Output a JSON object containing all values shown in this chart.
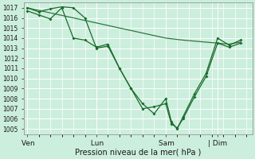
{
  "xlabel": "Pression niveau de la mer( hPa )",
  "bg_color": "#cceedd",
  "grid_color": "#ffffff",
  "line_color": "#1a6b2a",
  "ylim": [
    1004.5,
    1017.5
  ],
  "yticks": [
    1005,
    1006,
    1007,
    1008,
    1009,
    1010,
    1011,
    1012,
    1013,
    1014,
    1015,
    1016,
    1017
  ],
  "day_labels": [
    " Ven",
    " Lun",
    " Sam",
    "| Dim"
  ],
  "day_positions": [
    0.0,
    24.0,
    48.0,
    66.0
  ],
  "day_vlines": [
    0.0,
    24.0,
    48.0,
    66.0
  ],
  "xlim": [
    -1,
    78
  ],
  "line1_x": [
    0,
    4,
    8,
    12,
    16,
    20,
    24,
    28,
    32,
    36,
    40,
    44,
    48,
    50,
    52,
    54,
    58,
    62,
    66,
    70,
    74
  ],
  "line1_y": [
    1017.0,
    1016.6,
    1016.9,
    1017.1,
    1017.0,
    1016.0,
    1013.0,
    1013.2,
    1011.0,
    1009.0,
    1007.0,
    1007.2,
    1007.5,
    1005.5,
    1005.1,
    1006.0,
    1008.2,
    1010.2,
    1013.5,
    1013.1,
    1013.5
  ],
  "line2_x": [
    0,
    4,
    8,
    12,
    16,
    20,
    24,
    28,
    32,
    36,
    40,
    44,
    48,
    50,
    52,
    54,
    58,
    62,
    66,
    70,
    74
  ],
  "line2_y": [
    1016.7,
    1016.3,
    1015.9,
    1017.0,
    1014.0,
    1013.8,
    1013.1,
    1013.4,
    1011.0,
    1009.0,
    1007.5,
    1006.5,
    1008.0,
    1005.7,
    1005.0,
    1006.2,
    1008.5,
    1010.5,
    1014.0,
    1013.3,
    1013.8
  ],
  "line3_x": [
    0,
    8,
    16,
    24,
    32,
    40,
    48,
    54,
    62,
    66,
    70,
    74
  ],
  "line3_y": [
    1017.0,
    1016.5,
    1016.0,
    1015.5,
    1015.0,
    1014.5,
    1014.0,
    1013.8,
    1013.6,
    1013.5,
    1013.4,
    1013.6
  ],
  "marker_size": 2.0,
  "line_width": 0.9,
  "xlabel_fontsize": 7,
  "tick_fontsize": 5.5,
  "day_fontsize": 6.5
}
